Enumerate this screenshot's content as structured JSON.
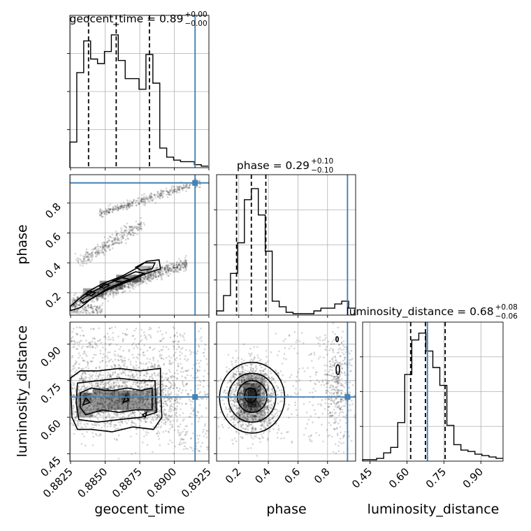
{
  "chart_data": {
    "type": "corner",
    "parameters": [
      "geocent_time",
      "phase",
      "luminosity_distance"
    ],
    "axis_labels": [
      "geocent_time",
      "phase",
      "luminosity_distance"
    ],
    "truths": {
      "geocent_time": 0.8915,
      "phase": 0.935,
      "luminosity_distance": 0.683
    },
    "truth_color": "#4682b4",
    "grid": true,
    "titles": [
      {
        "param": "geocent_time",
        "text": "geocent_time = 0.89",
        "sup": "+0.00",
        "sub": "−0.00"
      },
      {
        "param": "phase",
        "text": "phase = 0.29",
        "sup": "+0.10",
        "sub": "−0.10"
      },
      {
        "param": "luminosity_distance",
        "text": "luminosity_distance = 0.68",
        "sup": "+0.08",
        "sub": "−0.06"
      }
    ],
    "ranges": {
      "geocent_time": [
        0.88245,
        0.8925
      ],
      "phase": [
        0.05,
        0.99
      ],
      "luminosity_distance": [
        0.42,
        0.99
      ]
    },
    "ticks": {
      "geocent_time": [
        "0.8825",
        "0.8850",
        "0.8875",
        "0.8900",
        "0.8925"
      ],
      "phase_y": [
        "0.2",
        "0.4",
        "0.6",
        "0.8"
      ],
      "phase_x": [
        "0.2",
        "0.4",
        "0.6",
        "0.8"
      ],
      "luminosity_distance": [
        "0.45",
        "0.60",
        "0.75",
        "0.90"
      ]
    },
    "quantiles": {
      "geocent_time": [
        0.8838,
        0.8858,
        0.8882
      ],
      "phase": [
        0.185,
        0.285,
        0.383
      ],
      "luminosity_distance": [
        0.615,
        0.675,
        0.755
      ]
    },
    "histograms": {
      "geocent_time": {
        "edges": [
          0.88245,
          0.88295,
          0.88345,
          0.88395,
          0.88445,
          0.88495,
          0.88545,
          0.88595,
          0.88645,
          0.88695,
          0.88745,
          0.88795,
          0.88845,
          0.88895,
          0.88945,
          0.88995,
          0.89045,
          0.89095,
          0.89145,
          0.89195,
          0.89245
        ],
        "counts": [
          0.17,
          0.63,
          0.84,
          0.72,
          0.69,
          0.77,
          0.88,
          0.71,
          0.59,
          0.59,
          0.52,
          0.75,
          0.56,
          0.13,
          0.07,
          0.05,
          0.04,
          0.04,
          0.02,
          0.01
        ]
      },
      "phase": {
        "edges": [
          0.05,
          0.097,
          0.144,
          0.191,
          0.238,
          0.285,
          0.332,
          0.379,
          0.426,
          0.473,
          0.52,
          0.567,
          0.614,
          0.661,
          0.708,
          0.755,
          0.802,
          0.849,
          0.896,
          0.943,
          0.99
        ],
        "counts": [
          0.03,
          0.14,
          0.3,
          0.52,
          0.83,
          0.91,
          0.72,
          0.46,
          0.1,
          0.06,
          0.02,
          0.01,
          0.01,
          0.01,
          0.03,
          0.05,
          0.05,
          0.08,
          0.1,
          0.05
        ]
      },
      "luminosity_distance": {
        "edges": [
          0.42,
          0.4485,
          0.477,
          0.5055,
          0.534,
          0.5625,
          0.591,
          0.6195,
          0.648,
          0.6765,
          0.705,
          0.7335,
          0.762,
          0.7905,
          0.819,
          0.8475,
          0.876,
          0.9045,
          0.933,
          0.9615,
          0.99
        ],
        "counts": [
          0.01,
          0.01,
          0.02,
          0.06,
          0.1,
          0.28,
          0.63,
          0.88,
          0.93,
          0.8,
          0.68,
          0.55,
          0.26,
          0.12,
          0.08,
          0.07,
          0.05,
          0.04,
          0.03,
          0.02
        ]
      }
    }
  }
}
